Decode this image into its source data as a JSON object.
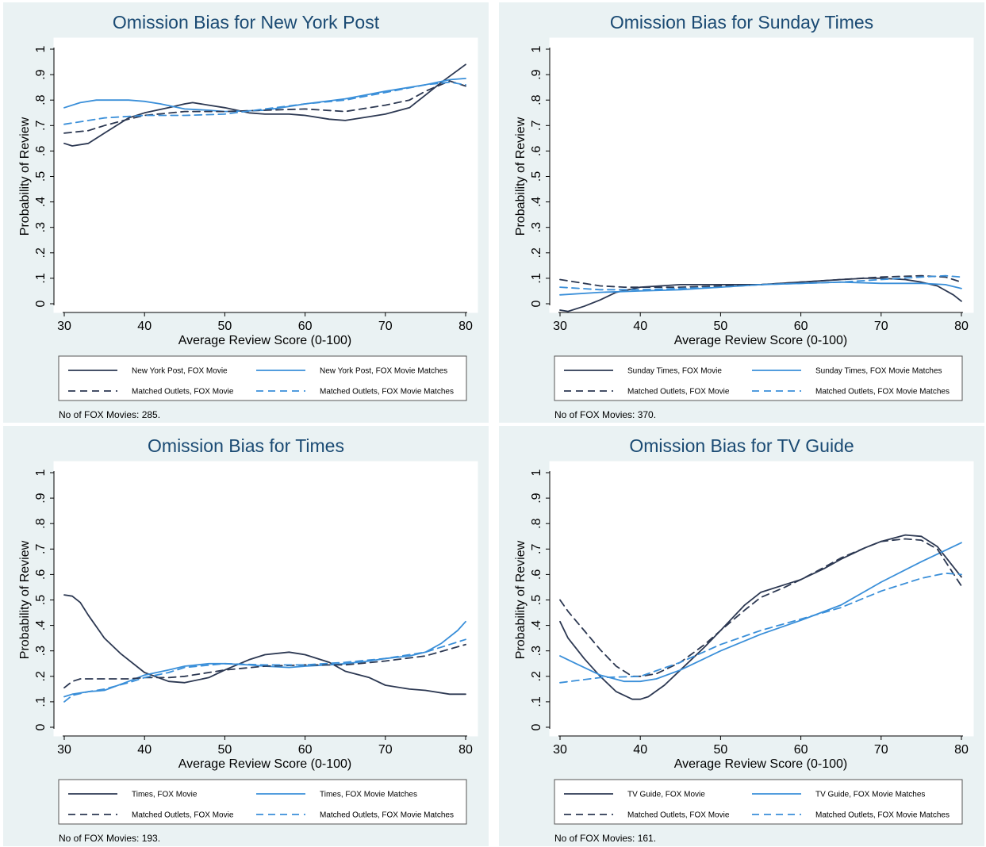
{
  "chart_data": [
    {
      "type": "line",
      "title": "Omission Bias for New York Post",
      "xlabel": "Average Review Score (0-100)",
      "ylabel": "Probability of Review",
      "xlim": [
        30,
        80
      ],
      "ylim": [
        0,
        1
      ],
      "xticks": [
        30,
        40,
        50,
        60,
        70,
        80
      ],
      "yticks": [
        "0",
        ".1",
        ".2",
        ".3",
        ".4",
        ".5",
        ".6",
        ".7",
        ".8",
        ".9",
        "1"
      ],
      "grid": false,
      "legend_position": "bottom",
      "note": "No of FOX Movies: 285.",
      "series": [
        {
          "name": "New York Post, FOX Movie",
          "style": "solid",
          "color": "#2c3852",
          "x": [
            30,
            31,
            33,
            35,
            38,
            40,
            43,
            45,
            46,
            48,
            50,
            53,
            55,
            58,
            60,
            63,
            65,
            68,
            70,
            73,
            75,
            77,
            80
          ],
          "y": [
            0.63,
            0.62,
            0.63,
            0.67,
            0.73,
            0.75,
            0.77,
            0.785,
            0.79,
            0.78,
            0.77,
            0.75,
            0.745,
            0.745,
            0.74,
            0.725,
            0.72,
            0.735,
            0.745,
            0.77,
            0.82,
            0.87,
            0.94
          ]
        },
        {
          "name": "New York Post, FOX Movie Matches",
          "style": "solid",
          "color": "#3a8fd9",
          "x": [
            30,
            32,
            34,
            36,
            38,
            40,
            42,
            45,
            48,
            50,
            55,
            60,
            65,
            70,
            75,
            78,
            80
          ],
          "y": [
            0.77,
            0.79,
            0.8,
            0.8,
            0.8,
            0.795,
            0.785,
            0.765,
            0.76,
            0.755,
            0.76,
            0.785,
            0.805,
            0.835,
            0.86,
            0.88,
            0.885
          ]
        },
        {
          "name": "Matched Outlets, FOX Movie",
          "style": "dashed",
          "color": "#2c3852",
          "x": [
            30,
            33,
            35,
            38,
            40,
            45,
            50,
            55,
            60,
            65,
            70,
            73,
            75,
            78,
            80
          ],
          "y": [
            0.67,
            0.68,
            0.7,
            0.725,
            0.74,
            0.755,
            0.755,
            0.76,
            0.765,
            0.755,
            0.78,
            0.8,
            0.835,
            0.875,
            0.855
          ]
        },
        {
          "name": "Matched Outlets, FOX Movie Matches",
          "style": "dashed",
          "color": "#3a8fd9",
          "x": [
            30,
            33,
            35,
            40,
            45,
            50,
            55,
            60,
            65,
            70,
            75,
            78,
            80
          ],
          "y": [
            0.705,
            0.72,
            0.73,
            0.74,
            0.74,
            0.745,
            0.765,
            0.785,
            0.8,
            0.83,
            0.86,
            0.87,
            0.86
          ]
        }
      ]
    },
    {
      "type": "line",
      "title": "Omission Bias for Sunday Times",
      "xlabel": "Average Review Score (0-100)",
      "ylabel": "Probability of Review",
      "xlim": [
        30,
        80
      ],
      "ylim": [
        0,
        1
      ],
      "xticks": [
        30,
        40,
        50,
        60,
        70,
        80
      ],
      "yticks": [
        "0",
        ".1",
        ".2",
        ".3",
        ".4",
        ".5",
        ".6",
        ".7",
        ".8",
        ".9",
        "1"
      ],
      "grid": false,
      "legend_position": "bottom",
      "note": "No of FOX Movies: 370.",
      "series": [
        {
          "name": "Sunday Times, FOX Movie",
          "style": "solid",
          "color": "#2c3852",
          "x": [
            30,
            31,
            33,
            35,
            37,
            40,
            45,
            50,
            55,
            60,
            65,
            68,
            70,
            73,
            75,
            77,
            79,
            80
          ],
          "y": [
            -0.025,
            -0.03,
            -0.01,
            0.015,
            0.045,
            0.065,
            0.075,
            0.075,
            0.075,
            0.085,
            0.095,
            0.1,
            0.1,
            0.095,
            0.085,
            0.07,
            0.035,
            0.01
          ]
        },
        {
          "name": "Sunday Times, FOX Movie Matches",
          "style": "solid",
          "color": "#3a8fd9",
          "x": [
            30,
            35,
            40,
            45,
            50,
            55,
            60,
            65,
            70,
            75,
            78,
            80
          ],
          "y": [
            0.035,
            0.045,
            0.05,
            0.055,
            0.065,
            0.075,
            0.08,
            0.085,
            0.08,
            0.08,
            0.075,
            0.06
          ]
        },
        {
          "name": "Matched Outlets, FOX Movie",
          "style": "dashed",
          "color": "#2c3852",
          "x": [
            30,
            33,
            35,
            38,
            40,
            45,
            50,
            55,
            60,
            65,
            70,
            75,
            78,
            80
          ],
          "y": [
            0.095,
            0.08,
            0.07,
            0.065,
            0.065,
            0.065,
            0.07,
            0.075,
            0.085,
            0.095,
            0.105,
            0.11,
            0.105,
            0.085
          ]
        },
        {
          "name": "Matched Outlets, FOX Movie Matches",
          "style": "dashed",
          "color": "#3a8fd9",
          "x": [
            30,
            35,
            40,
            45,
            50,
            55,
            60,
            65,
            70,
            75,
            78,
            80
          ],
          "y": [
            0.065,
            0.055,
            0.055,
            0.06,
            0.065,
            0.075,
            0.08,
            0.085,
            0.095,
            0.105,
            0.11,
            0.105
          ]
        }
      ]
    },
    {
      "type": "line",
      "title": "Omission Bias for Times",
      "xlabel": "Average Review Score (0-100)",
      "ylabel": "Probability of Review",
      "xlim": [
        30,
        80
      ],
      "ylim": [
        0,
        1
      ],
      "xticks": [
        30,
        40,
        50,
        60,
        70,
        80
      ],
      "yticks": [
        "0",
        ".1",
        ".2",
        ".3",
        ".4",
        ".5",
        ".6",
        ".7",
        ".8",
        ".9",
        "1"
      ],
      "grid": false,
      "legend_position": "bottom",
      "note": "No of FOX Movies: 193.",
      "series": [
        {
          "name": "Times, FOX Movie",
          "style": "solid",
          "color": "#2c3852",
          "x": [
            30,
            31,
            32,
            33,
            35,
            37,
            40,
            43,
            45,
            48,
            50,
            53,
            55,
            58,
            60,
            63,
            65,
            68,
            70,
            73,
            75,
            78,
            80
          ],
          "y": [
            0.52,
            0.515,
            0.49,
            0.44,
            0.35,
            0.29,
            0.215,
            0.18,
            0.175,
            0.195,
            0.225,
            0.265,
            0.285,
            0.295,
            0.285,
            0.255,
            0.22,
            0.195,
            0.165,
            0.15,
            0.145,
            0.13,
            0.13
          ]
        },
        {
          "name": "Times, FOX Movie Matches",
          "style": "solid",
          "color": "#3a8fd9",
          "x": [
            30,
            31,
            33,
            35,
            38,
            40,
            43,
            45,
            48,
            50,
            53,
            55,
            58,
            60,
            63,
            65,
            68,
            70,
            73,
            75,
            77,
            79,
            80
          ],
          "y": [
            0.12,
            0.13,
            0.14,
            0.145,
            0.18,
            0.205,
            0.225,
            0.24,
            0.25,
            0.25,
            0.245,
            0.24,
            0.235,
            0.24,
            0.245,
            0.25,
            0.26,
            0.27,
            0.28,
            0.295,
            0.33,
            0.38,
            0.415
          ]
        },
        {
          "name": "Matched Outlets, FOX Movie",
          "style": "dashed",
          "color": "#2c3852",
          "x": [
            30,
            31,
            32,
            35,
            38,
            40,
            43,
            45,
            50,
            55,
            60,
            65,
            70,
            75,
            80
          ],
          "y": [
            0.155,
            0.18,
            0.19,
            0.19,
            0.19,
            0.195,
            0.195,
            0.2,
            0.225,
            0.24,
            0.245,
            0.245,
            0.26,
            0.28,
            0.325
          ]
        },
        {
          "name": "Matched Outlets, FOX Movie Matches",
          "style": "dashed",
          "color": "#3a8fd9",
          "x": [
            30,
            31,
            33,
            35,
            38,
            40,
            43,
            45,
            50,
            55,
            60,
            65,
            70,
            75,
            80
          ],
          "y": [
            0.1,
            0.125,
            0.14,
            0.15,
            0.175,
            0.195,
            0.215,
            0.235,
            0.25,
            0.245,
            0.245,
            0.255,
            0.27,
            0.295,
            0.345
          ]
        }
      ]
    },
    {
      "type": "line",
      "title": "Omission Bias for TV Guide",
      "xlabel": "Average Review Score (0-100)",
      "ylabel": "Probability of Review",
      "xlim": [
        30,
        80
      ],
      "ylim": [
        0,
        1
      ],
      "xticks": [
        30,
        40,
        50,
        60,
        70,
        80
      ],
      "yticks": [
        "0",
        ".1",
        ".2",
        ".3",
        ".4",
        ".5",
        ".6",
        ".7",
        ".8",
        ".9",
        "1"
      ],
      "grid": false,
      "legend_position": "bottom",
      "note": "No of FOX Movies: 161.",
      "series": [
        {
          "name": "TV Guide, FOX Movie",
          "style": "solid",
          "color": "#2c3852",
          "x": [
            30,
            31,
            33,
            35,
            37,
            39,
            40,
            41,
            43,
            45,
            48,
            50,
            53,
            55,
            58,
            60,
            63,
            65,
            68,
            70,
            73,
            75,
            77,
            79,
            80
          ],
          "y": [
            0.415,
            0.35,
            0.27,
            0.2,
            0.14,
            0.11,
            0.11,
            0.12,
            0.165,
            0.225,
            0.315,
            0.38,
            0.48,
            0.53,
            0.56,
            0.58,
            0.625,
            0.66,
            0.705,
            0.73,
            0.755,
            0.75,
            0.71,
            0.63,
            0.59
          ]
        },
        {
          "name": "TV Guide, FOX Movie Matches",
          "style": "solid",
          "color": "#3a8fd9",
          "x": [
            30,
            32,
            35,
            38,
            40,
            42,
            45,
            50,
            55,
            60,
            65,
            70,
            75,
            80
          ],
          "y": [
            0.28,
            0.25,
            0.205,
            0.18,
            0.18,
            0.19,
            0.225,
            0.3,
            0.365,
            0.42,
            0.48,
            0.57,
            0.65,
            0.725
          ]
        },
        {
          "name": "Matched Outlets, FOX Movie",
          "style": "dashed",
          "color": "#2c3852",
          "x": [
            30,
            31,
            33,
            35,
            37,
            39,
            40,
            42,
            45,
            48,
            50,
            53,
            55,
            58,
            60,
            63,
            65,
            68,
            70,
            73,
            75,
            77,
            80
          ],
          "y": [
            0.5,
            0.455,
            0.38,
            0.305,
            0.24,
            0.2,
            0.2,
            0.21,
            0.255,
            0.325,
            0.38,
            0.46,
            0.51,
            0.55,
            0.58,
            0.63,
            0.665,
            0.705,
            0.73,
            0.74,
            0.735,
            0.7,
            0.555
          ]
        },
        {
          "name": "Matched Outlets, FOX Movie Matches",
          "style": "dashed",
          "color": "#3a8fd9",
          "x": [
            30,
            35,
            40,
            45,
            50,
            55,
            60,
            65,
            70,
            75,
            78,
            80
          ],
          "y": [
            0.175,
            0.195,
            0.2,
            0.255,
            0.325,
            0.38,
            0.425,
            0.47,
            0.535,
            0.585,
            0.605,
            0.6
          ]
        }
      ]
    }
  ]
}
